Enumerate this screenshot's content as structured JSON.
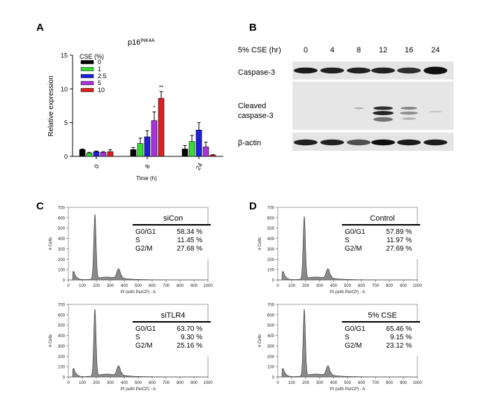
{
  "panels": {
    "A": "A",
    "B": "B",
    "C": "C",
    "D": "D"
  },
  "colors": {
    "cse_0": "#000000",
    "cse_1": "#33dd33",
    "cse_2_5": "#1f1fdd",
    "cse_5": "#aa33dd",
    "cse_10": "#dd1f1f",
    "blot_bg": "#e4e4e4",
    "histogram_fill": "#8a8a8a"
  },
  "panel_a": {
    "title_main": "p16",
    "title_sup": "INK4A",
    "ylabel": "Relative expression",
    "xlabel": "Time (h)",
    "legend_title": "CSE (%)",
    "yticks": [
      "0",
      "5",
      "10",
      "15"
    ],
    "significance": [
      {
        "label": "*"
      },
      {
        "label": "**"
      }
    ]
  },
  "chart_data": {
    "type": "bar",
    "title": "p16INK4A",
    "xlabel": "Time (h)",
    "ylabel": "Relative expression",
    "ylim": [
      0,
      15
    ],
    "categories": [
      "0",
      "8",
      "24"
    ],
    "series": [
      {
        "name": "0",
        "values": [
          1.0,
          1.0,
          1.1
        ],
        "errors": [
          0.1,
          0.3,
          0.5
        ]
      },
      {
        "name": "1",
        "values": [
          0.5,
          1.9,
          2.2
        ],
        "errors": [
          0.1,
          0.8,
          0.9
        ]
      },
      {
        "name": "2.5",
        "values": [
          0.7,
          2.9,
          3.9
        ],
        "errors": [
          0.1,
          0.9,
          1.1
        ]
      },
      {
        "name": "5",
        "values": [
          0.6,
          5.3,
          1.4
        ],
        "errors": [
          0.1,
          1.3,
          0.7
        ]
      },
      {
        "name": "10",
        "values": [
          0.7,
          8.6,
          0.2
        ],
        "errors": [
          0.3,
          1.0,
          0.05
        ]
      }
    ],
    "legend": "top-left",
    "grid": false
  },
  "panel_b": {
    "header_label": "5% CSE (hr)",
    "timepoints": [
      "0",
      "4",
      "8",
      "12",
      "16",
      "24"
    ],
    "row1_label": "Caspase-3",
    "row2_label_line1": "Cleaved",
    "row2_label_line2": "caspase-3",
    "row3_label": "β-actin"
  },
  "flow": {
    "ylabel": "# Cells",
    "xlabel": "PI (with PerCP) - A",
    "yticks": [
      "0",
      "100",
      "200",
      "300",
      "400",
      "500",
      "600",
      "700"
    ],
    "xticks": [
      "0",
      "100",
      "200",
      "300",
      "400",
      "500",
      "600",
      "700",
      "800",
      "900",
      "1000"
    ],
    "phase_labels": [
      "G0/G1",
      "S",
      "G2/M"
    ],
    "plots": [
      {
        "title": "siCon",
        "values": [
          "58.34 %",
          "11.45 %",
          "27.68 %"
        ]
      },
      {
        "title": "siTLR4",
        "values": [
          "63.70 %",
          "9.30 %",
          "25.16 %"
        ]
      },
      {
        "title": "Control",
        "values": [
          "57.89 %",
          "11.97 %",
          "27.69 %"
        ]
      },
      {
        "title": "5% CSE",
        "values": [
          "65.46 %",
          "9.15 %",
          "23.12 %"
        ]
      }
    ]
  }
}
